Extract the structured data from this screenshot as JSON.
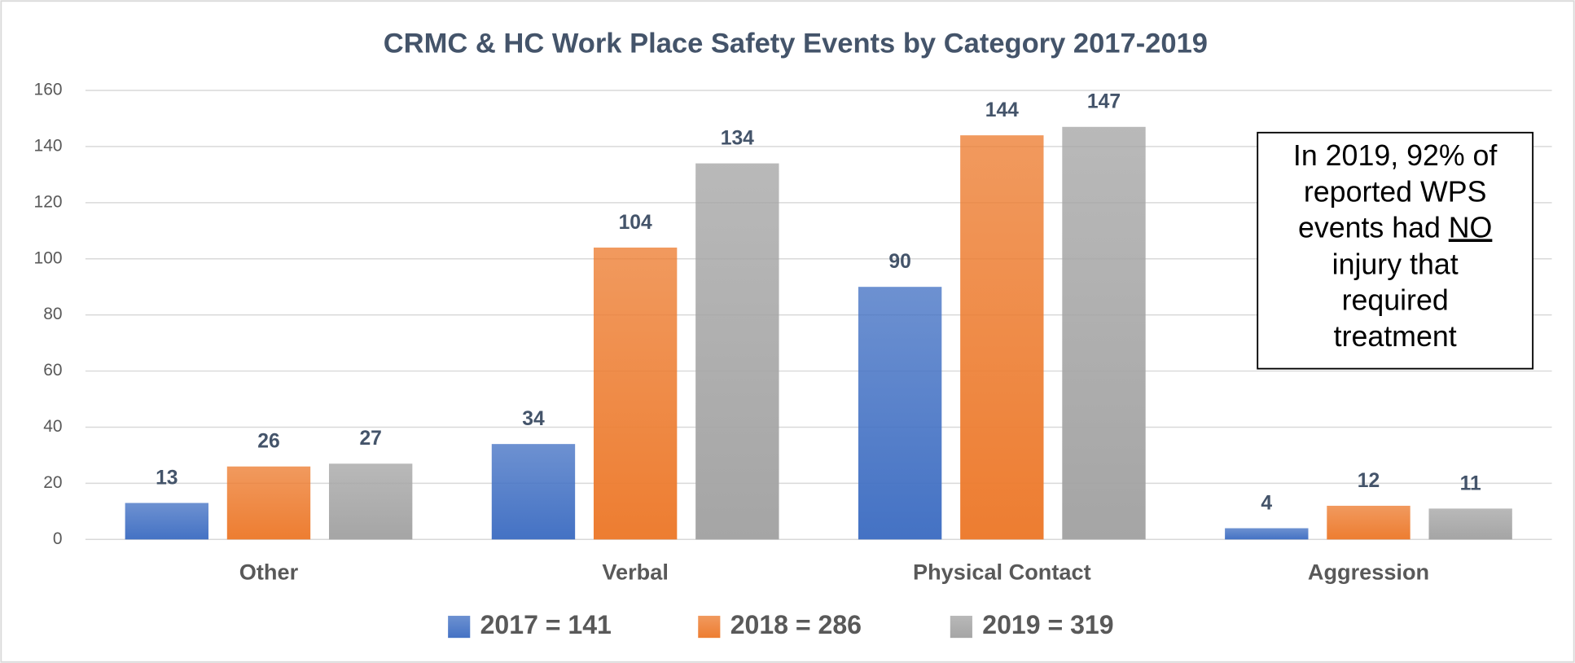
{
  "chart_data": {
    "type": "bar",
    "title": "CRMC & HC Work Place Safety Events by Category 2017-2019",
    "categories": [
      "Other",
      "Verbal",
      "Physical Contact",
      "Aggression"
    ],
    "series": [
      {
        "name": "2017 = 141",
        "color": "#4472c4",
        "values": [
          13,
          34,
          90,
          4
        ]
      },
      {
        "name": "2018 = 286",
        "color": "#ed7d31",
        "values": [
          26,
          104,
          144,
          12
        ]
      },
      {
        "name": "2019 = 319",
        "color": "#a5a5a5",
        "values": [
          27,
          134,
          147,
          11
        ]
      }
    ],
    "ylim": [
      0,
      160
    ],
    "yticks": [
      0,
      20,
      40,
      60,
      80,
      100,
      120,
      140,
      160
    ],
    "grid": true,
    "legend": "bottom",
    "annotation_lines": [
      "In 2019, 92% of",
      "reported WPS",
      [
        "events had",
        "NO"
      ],
      "injury that",
      "required",
      "treatment"
    ]
  }
}
